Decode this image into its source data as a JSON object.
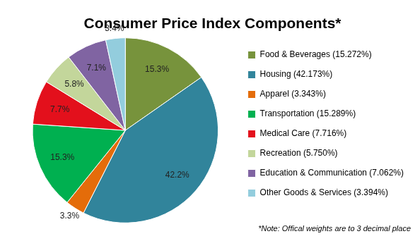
{
  "chart_data": {
    "type": "pie",
    "title": "Consumer Price Index Components*",
    "subtitle": "*Note: Offical weights are to 3 decimal place",
    "categories": [
      "Food & Beverages (15.272%)",
      "Housing (42.173%)",
      "Apparel (3.343%)",
      "Transportation (15.289%)",
      "Medical Care (7.716%)",
      "Recreation (5.750%)",
      "Education & Communication (7.062%)",
      "Other Goods & Services (3.394%)"
    ],
    "values": [
      15.272,
      42.173,
      3.343,
      15.289,
      7.716,
      5.75,
      7.062,
      3.394
    ],
    "value_labels": [
      "15.3%",
      "42.2%",
      "3.3%",
      "15.3%",
      "7.7%",
      "5.8%",
      "7.1%",
      "3.4%"
    ],
    "colors": [
      "#77933c",
      "#31849b",
      "#e46c0a",
      "#00b050",
      "#e3101c",
      "#c3d69b",
      "#8064a2",
      "#93cddd"
    ],
    "legend": "right",
    "data_labels": true
  }
}
